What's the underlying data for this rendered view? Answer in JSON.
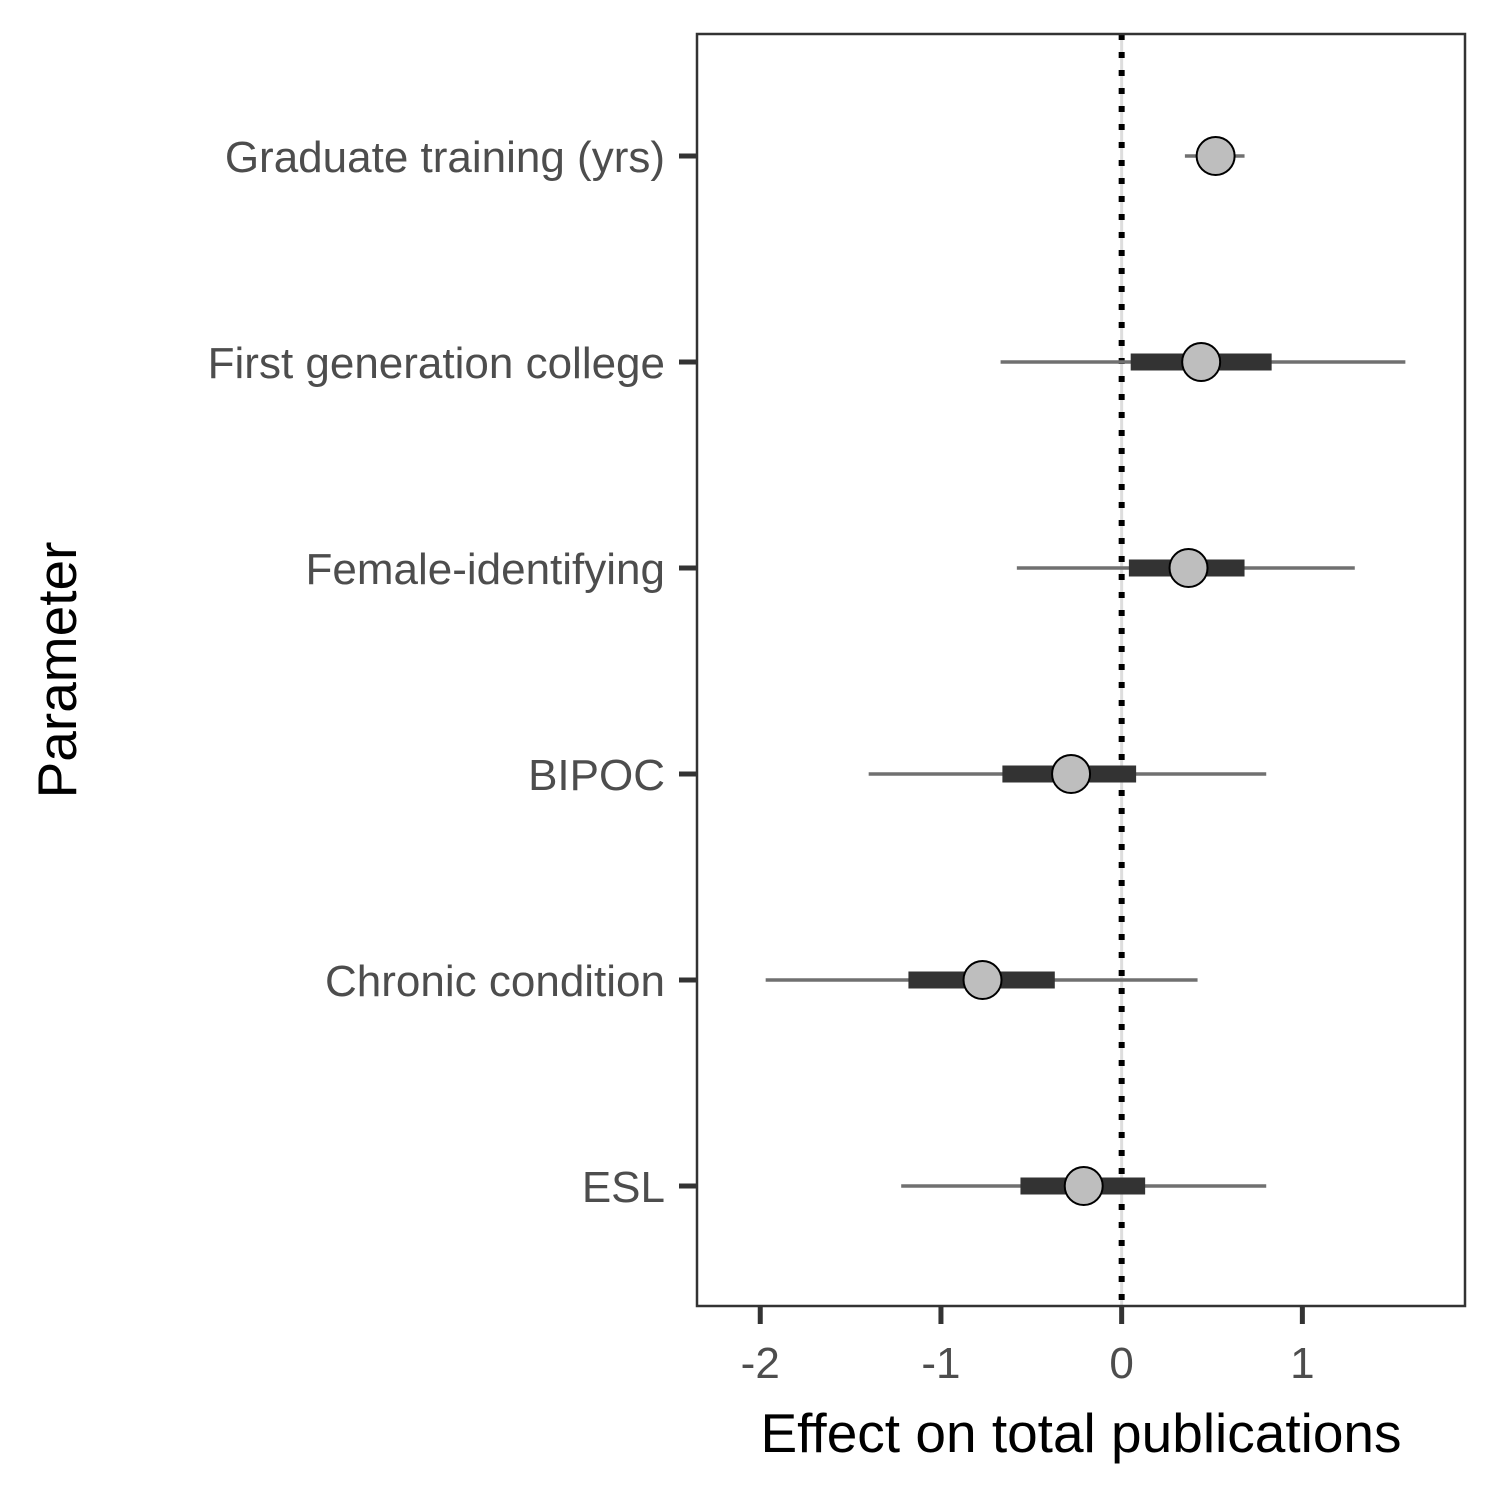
{
  "chart_data": {
    "type": "forest",
    "xlabel": "Effect on total publications",
    "ylabel": "Parameter",
    "xlim": [
      -2.35,
      1.9
    ],
    "x_ticks": [
      -2,
      -1,
      0,
      1
    ],
    "reference_line": 0,
    "grid": false,
    "categories": [
      "Graduate training (yrs)",
      "First generation college",
      "Female-identifying",
      "BIPOC",
      "Chronic condition",
      "ESL"
    ],
    "estimates": [
      {
        "label": "Graduate training (yrs)",
        "mean": 0.52,
        "inner": [
          0.45,
          0.6
        ],
        "outer": [
          0.35,
          0.68
        ]
      },
      {
        "label": "First generation college",
        "mean": 0.44,
        "inner": [
          0.05,
          0.83
        ],
        "outer": [
          -0.67,
          1.57
        ]
      },
      {
        "label": "Female-identifying",
        "mean": 0.37,
        "inner": [
          0.04,
          0.68
        ],
        "outer": [
          -0.58,
          1.29
        ]
      },
      {
        "label": "BIPOC",
        "mean": -0.28,
        "inner": [
          -0.66,
          0.08
        ],
        "outer": [
          -1.4,
          0.8
        ]
      },
      {
        "label": "Chronic condition",
        "mean": -0.77,
        "inner": [
          -1.18,
          -0.37
        ],
        "outer": [
          -1.97,
          0.42
        ]
      },
      {
        "label": "ESL",
        "mean": -0.21,
        "inner": [
          -0.56,
          0.13
        ],
        "outer": [
          -1.22,
          0.8
        ]
      }
    ],
    "colors": {
      "outer_interval": "#707070",
      "inner_interval": "#333333",
      "point_fill": "#bebebe",
      "point_stroke": "#000000",
      "reference": "#000000",
      "panel_border": "#333333"
    }
  }
}
